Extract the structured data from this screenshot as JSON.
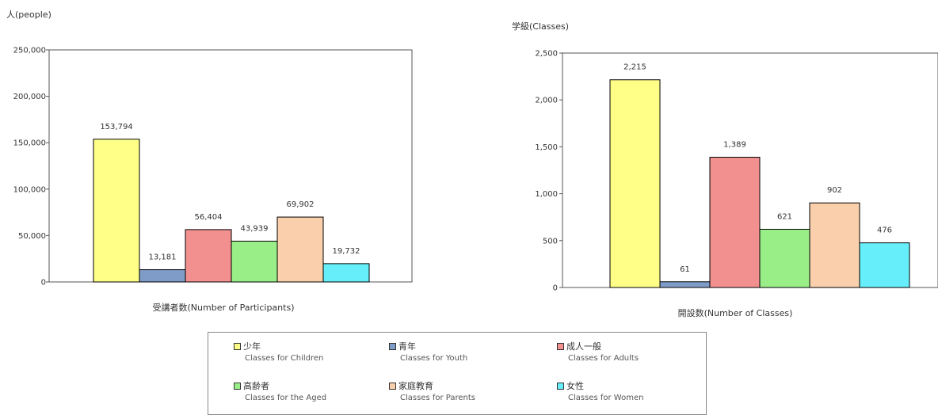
{
  "colors": {
    "children": "#ffff88",
    "youth": "#7f9cc8",
    "adults": "#f29090",
    "aged": "#99ee88",
    "parents": "#f9cfac",
    "women": "#66eefa",
    "plot_bg": "#ffffff",
    "border": "#555555"
  },
  "legend": [
    {
      "jp": "少年",
      "en": "Classes for Children",
      "color_key": "children"
    },
    {
      "jp": "青年",
      "en": "Classes for Youth",
      "color_key": "youth"
    },
    {
      "jp": "成人一般",
      "en": "Classes for Adults",
      "color_key": "adults"
    },
    {
      "jp": "高齢者",
      "en": "Classes for the Aged",
      "color_key": "aged"
    },
    {
      "jp": "家庭教育",
      "en": "Classes for Parents",
      "color_key": "parents"
    },
    {
      "jp": "女性",
      "en": "Classes for Women",
      "color_key": "women"
    }
  ],
  "chart_data": [
    {
      "type": "bar",
      "unit_label": "人(people)",
      "xlabel": "受講者数(Number of Participants)",
      "ylim": [
        0,
        250000
      ],
      "yticks": [
        "0",
        "50,000",
        "100,000",
        "150,000",
        "200,000",
        "250,000"
      ],
      "series": [
        {
          "name": "少年 Classes for Children",
          "value": 153794,
          "label": "153,794"
        },
        {
          "name": "青年 Classes for Youth",
          "value": 13181,
          "label": "13,181"
        },
        {
          "name": "成人一般 Classes for Adults",
          "value": 56404,
          "label": "56,404"
        },
        {
          "name": "高齢者 Classes for the Aged",
          "value": 43939,
          "label": "43,939"
        },
        {
          "name": "家庭教育 Classes for Parents",
          "value": 69902,
          "label": "69,902"
        },
        {
          "name": "女性 Classes for Women",
          "value": 19732,
          "label": "19,732"
        }
      ]
    },
    {
      "type": "bar",
      "unit_label": "学級(Classes)",
      "xlabel": "開設数(Number of Classes)",
      "ylim": [
        0,
        2500
      ],
      "yticks": [
        "0",
        "500",
        "1,000",
        "1,500",
        "2,000",
        "2,500"
      ],
      "series": [
        {
          "name": "少年 Classes for Children",
          "value": 2215,
          "label": "2,215"
        },
        {
          "name": "青年 Classes for Youth",
          "value": 61,
          "label": "61"
        },
        {
          "name": "成人一般 Classes for Adults",
          "value": 1389,
          "label": "1,389"
        },
        {
          "name": "高齢者 Classes for the Aged",
          "value": 621,
          "label": "621"
        },
        {
          "name": "家庭教育 Classes for Parents",
          "value": 902,
          "label": "902"
        },
        {
          "name": "女性 Classes for Women",
          "value": 476,
          "label": "476"
        }
      ]
    }
  ]
}
